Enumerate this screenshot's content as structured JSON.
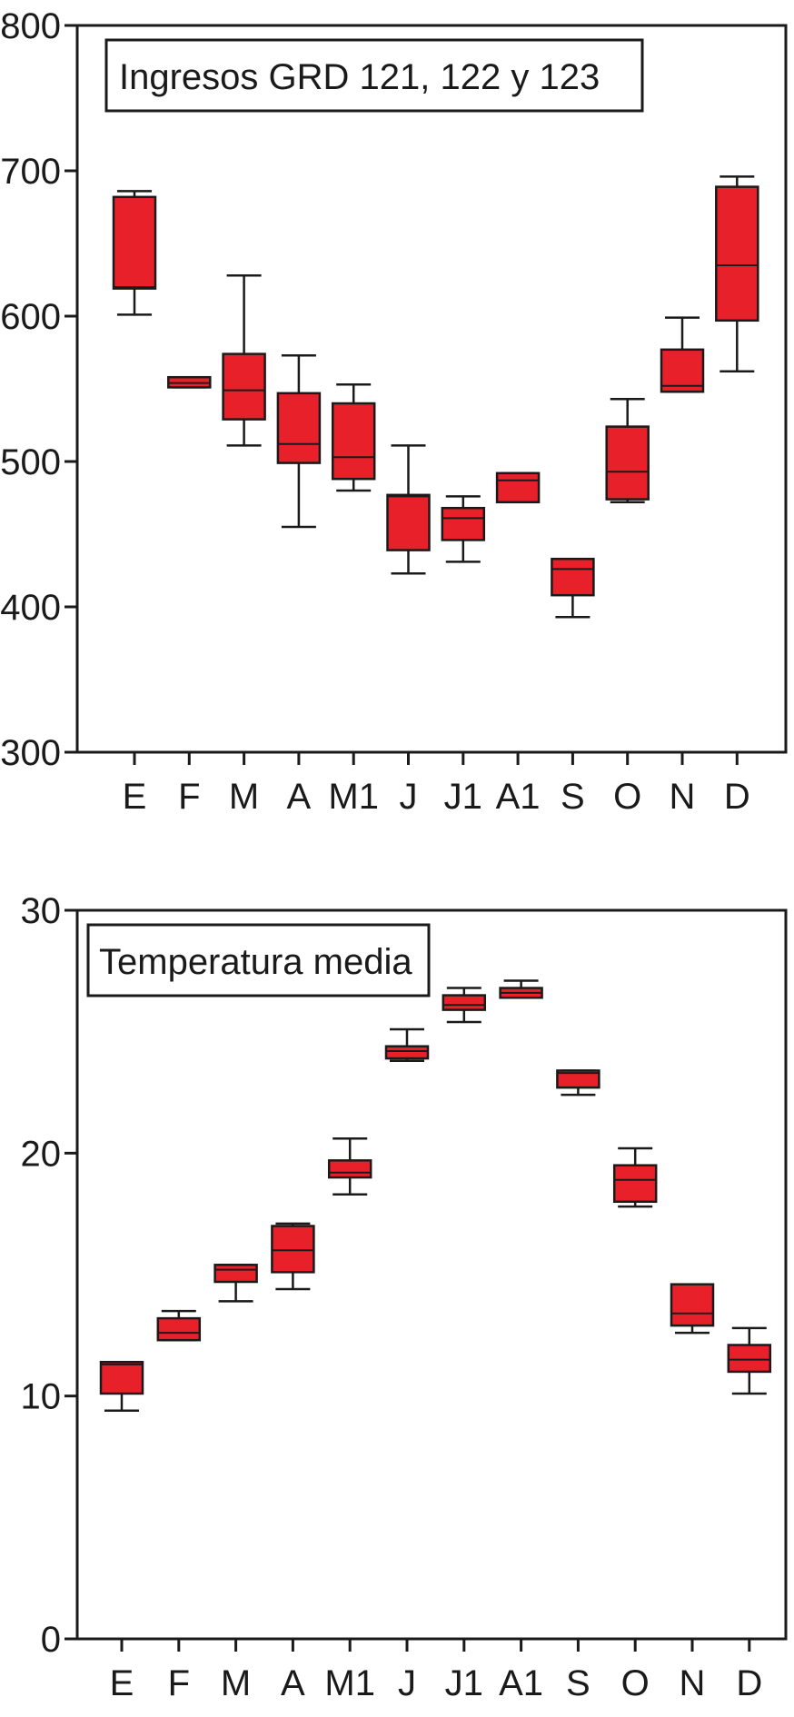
{
  "colors": {
    "box_fill": "#e8202a",
    "line": "#1a1a1a",
    "background": "#ffffff"
  },
  "chart_data": [
    {
      "type": "boxplot",
      "title": "Ingresos GRD 121, 122 y 123",
      "xlabel": "",
      "ylabel": "",
      "ylim": [
        300,
        800
      ],
      "yticks": [
        300,
        400,
        500,
        600,
        700,
        800
      ],
      "legend_placement": "top-left",
      "grid": false,
      "categories": [
        "E",
        "F",
        "M",
        "A",
        "M1",
        "J",
        "J1",
        "A1",
        "S",
        "O",
        "N",
        "D"
      ],
      "boxes": [
        {
          "min": 601,
          "q1": 619,
          "median": 620,
          "q3": 682,
          "max": 686
        },
        {
          "min": 551,
          "q1": 551,
          "median": 554,
          "q3": 558,
          "max": 558
        },
        {
          "min": 511,
          "q1": 529,
          "median": 549,
          "q3": 574,
          "max": 628
        },
        {
          "min": 455,
          "q1": 499,
          "median": 512,
          "q3": 547,
          "max": 573
        },
        {
          "min": 480,
          "q1": 488,
          "median": 503,
          "q3": 540,
          "max": 553
        },
        {
          "min": 423,
          "q1": 439,
          "median": 476,
          "q3": 477,
          "max": 511
        },
        {
          "min": 431,
          "q1": 446,
          "median": 461,
          "q3": 468,
          "max": 476
        },
        {
          "min": 472,
          "q1": 472,
          "median": 487,
          "q3": 492,
          "max": 492
        },
        {
          "min": 393,
          "q1": 408,
          "median": 426,
          "q3": 433,
          "max": 433
        },
        {
          "min": 472,
          "q1": 474,
          "median": 493,
          "q3": 524,
          "max": 543
        },
        {
          "min": 548,
          "q1": 548,
          "median": 552,
          "q3": 577,
          "max": 599
        },
        {
          "min": 562,
          "q1": 597,
          "median": 635,
          "q3": 689,
          "max": 696
        }
      ]
    },
    {
      "type": "boxplot",
      "title": "Temperatura media",
      "xlabel": "",
      "ylabel": "",
      "ylim": [
        0,
        30
      ],
      "yticks": [
        0,
        10,
        20,
        30
      ],
      "legend_placement": "top-left",
      "grid": false,
      "categories": [
        "E",
        "F",
        "M",
        "A",
        "M1",
        "J",
        "J1",
        "A1",
        "S",
        "O",
        "N",
        "D"
      ],
      "boxes": [
        {
          "min": 9.4,
          "q1": 10.1,
          "median": 11.3,
          "q3": 11.4,
          "max": 11.4
        },
        {
          "min": 12.3,
          "q1": 12.3,
          "median": 12.6,
          "q3": 13.2,
          "max": 13.5
        },
        {
          "min": 13.9,
          "q1": 14.7,
          "median": 15.2,
          "q3": 15.4,
          "max": 15.4
        },
        {
          "min": 14.4,
          "q1": 15.1,
          "median": 16.0,
          "q3": 17.0,
          "max": 17.1
        },
        {
          "min": 18.3,
          "q1": 19.0,
          "median": 19.2,
          "q3": 19.7,
          "max": 20.6
        },
        {
          "min": 23.8,
          "q1": 23.9,
          "median": 24.2,
          "q3": 24.4,
          "max": 25.1
        },
        {
          "min": 25.4,
          "q1": 25.9,
          "median": 26.1,
          "q3": 26.5,
          "max": 26.8
        },
        {
          "min": 26.4,
          "q1": 26.4,
          "median": 26.6,
          "q3": 26.8,
          "max": 27.1
        },
        {
          "min": 22.4,
          "q1": 22.7,
          "median": 23.3,
          "q3": 23.4,
          "max": 23.4
        },
        {
          "min": 17.8,
          "q1": 18.0,
          "median": 18.9,
          "q3": 19.5,
          "max": 20.2
        },
        {
          "min": 12.6,
          "q1": 12.9,
          "median": 13.4,
          "q3": 14.6,
          "max": 14.6
        },
        {
          "min": 10.1,
          "q1": 11.0,
          "median": 11.5,
          "q3": 12.1,
          "max": 12.8
        }
      ]
    }
  ]
}
